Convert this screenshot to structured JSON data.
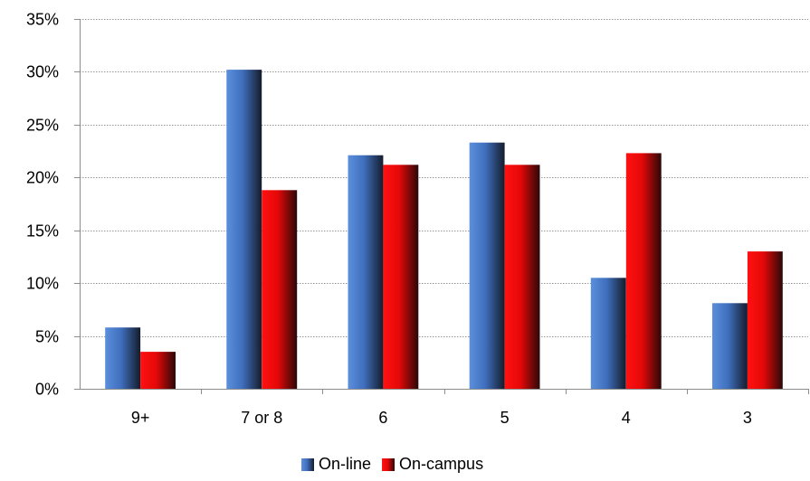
{
  "chart_data": {
    "type": "bar",
    "title": "",
    "xlabel": "",
    "ylabel": "",
    "categories": [
      "9+",
      "7 or 8",
      "6",
      "5",
      "4",
      "3"
    ],
    "series": [
      {
        "name": "On-line",
        "values": [
          5.8,
          30.2,
          22.1,
          23.3,
          10.5,
          8.1
        ]
      },
      {
        "name": "On-campus",
        "values": [
          3.5,
          18.8,
          21.2,
          21.2,
          22.3,
          13.0
        ]
      }
    ],
    "ylim": [
      0,
      35
    ],
    "yticks": [
      0,
      5,
      10,
      15,
      20,
      25,
      30,
      35
    ],
    "ytick_labels": [
      "0%",
      "5%",
      "10%",
      "15%",
      "20%",
      "25%",
      "30%",
      "35%"
    ],
    "grid": true,
    "legend_position": "bottom"
  },
  "colors": {
    "online": "#4a7fd0",
    "oncampus": "#ee0a0a",
    "gridline": "#9a9a9a",
    "axis": "#8c8c8c"
  }
}
